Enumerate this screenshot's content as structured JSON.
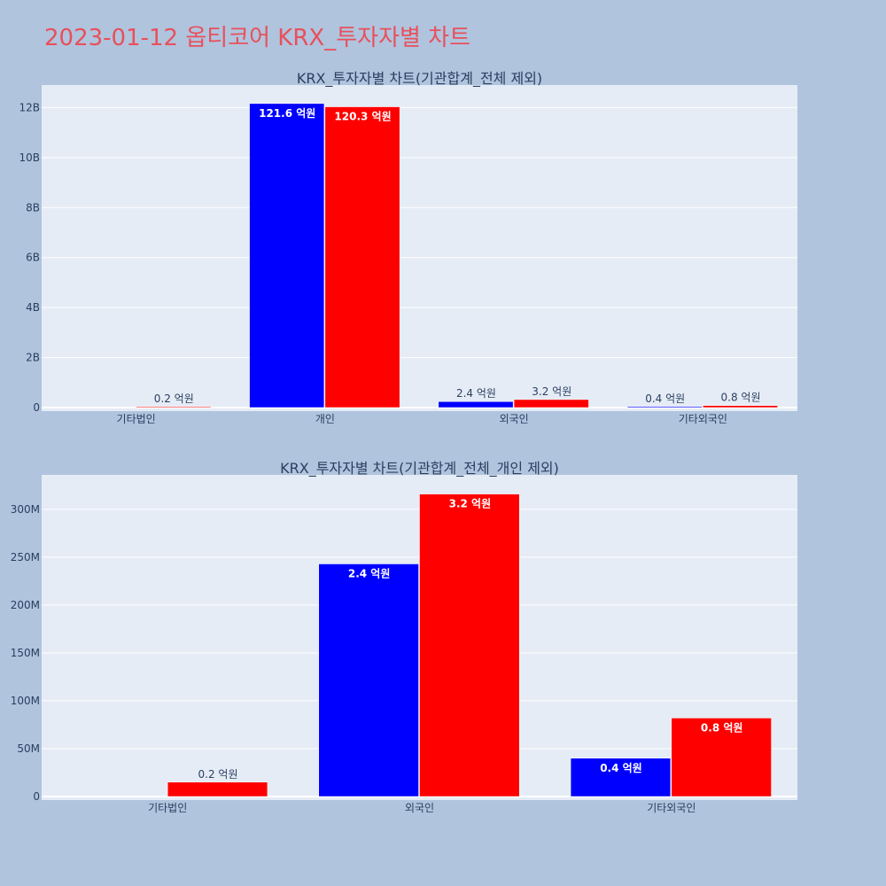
{
  "page_title": "2023-01-12 옵티코어 KRX_투자자별 차트",
  "colors": {
    "buy": "#0000ff",
    "sell": "#ff0000",
    "plot_bg": "#e5ecf6",
    "page_bg": "#b0c4de",
    "title": "#e8505b"
  },
  "chart_data": [
    {
      "type": "bar",
      "title": "KRX_투자자별 차트(기관합계_전체 제외)",
      "categories": [
        "기타법인",
        "개인",
        "외국인",
        "기타외국인"
      ],
      "ylim": [
        0,
        12900000000
      ],
      "yticks": [
        0,
        2000000000,
        4000000000,
        6000000000,
        8000000000,
        10000000000,
        12000000000
      ],
      "ytick_labels": [
        "0",
        "2B",
        "4B",
        "6B",
        "8B",
        "10B",
        "12B"
      ],
      "grid": true,
      "series": [
        {
          "color": "#0000ff",
          "values": [
            0,
            12160000000,
            240000000,
            40000000
          ],
          "labels": [
            "",
            "121.6 억원",
            "2.4 억원",
            "0.4 억원"
          ]
        },
        {
          "color": "#ff0000",
          "values": [
            15000000,
            12030000000,
            320000000,
            80000000
          ],
          "labels": [
            "0.2 억원",
            "120.3 억원",
            "3.2 억원",
            "0.8 억원"
          ]
        }
      ]
    },
    {
      "type": "bar",
      "title": "KRX_투자자별 차트(기관합계_전체_개인 제외)",
      "categories": [
        "기타법인",
        "외국인",
        "기타외국인"
      ],
      "ylim": [
        0,
        336000000
      ],
      "yticks": [
        0,
        50000000,
        100000000,
        150000000,
        200000000,
        250000000,
        300000000
      ],
      "ytick_labels": [
        "0",
        "50M",
        "100M",
        "150M",
        "200M",
        "250M",
        "300M"
      ],
      "grid": true,
      "series": [
        {
          "color": "#0000ff",
          "values": [
            0,
            243000000,
            40000000
          ],
          "labels": [
            "",
            "2.4 억원",
            "0.4 억원"
          ]
        },
        {
          "color": "#ff0000",
          "values": [
            15000000,
            316000000,
            82000000
          ],
          "labels": [
            "0.2 억원",
            "3.2 억원",
            "0.8 억원"
          ]
        }
      ]
    }
  ]
}
